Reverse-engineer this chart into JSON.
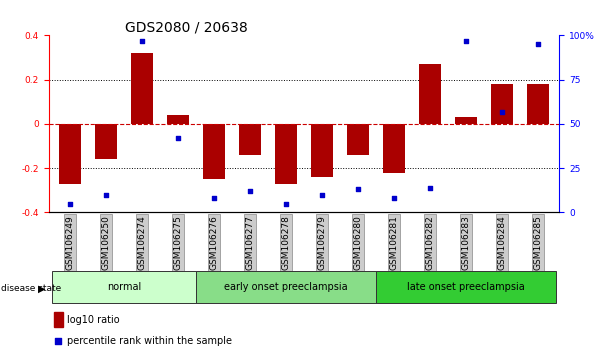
{
  "title": "GDS2080 / 20638",
  "samples": [
    "GSM106249",
    "GSM106250",
    "GSM106274",
    "GSM106275",
    "GSM106276",
    "GSM106277",
    "GSM106278",
    "GSM106279",
    "GSM106280",
    "GSM106281",
    "GSM106282",
    "GSM106283",
    "GSM106284",
    "GSM106285"
  ],
  "log10_ratio": [
    -0.27,
    -0.16,
    0.32,
    0.04,
    -0.25,
    -0.14,
    -0.27,
    -0.24,
    -0.14,
    -0.22,
    0.27,
    0.03,
    0.18,
    0.18
  ],
  "percentile_rank": [
    5,
    10,
    97,
    42,
    8,
    12,
    5,
    10,
    13,
    8,
    14,
    97,
    57,
    95
  ],
  "groups": [
    {
      "label": "normal",
      "start": 0,
      "end": 4,
      "color": "#ccffcc"
    },
    {
      "label": "early onset preeclampsia",
      "start": 4,
      "end": 9,
      "color": "#88dd88"
    },
    {
      "label": "late onset preeclampsia",
      "start": 9,
      "end": 14,
      "color": "#33cc33"
    }
  ],
  "ylim_left": [
    -0.4,
    0.4
  ],
  "ylim_right": [
    0,
    100
  ],
  "bar_color": "#aa0000",
  "dot_color": "#0000cc",
  "zero_line_color": "#cc0000",
  "background_color": "#ffffff",
  "title_fontsize": 10,
  "tick_fontsize": 6.5,
  "label_fontsize": 8
}
